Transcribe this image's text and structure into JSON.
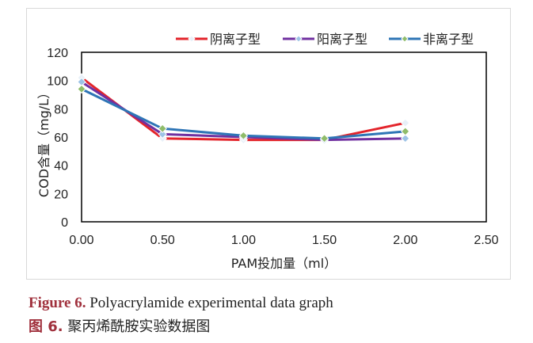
{
  "chart_data": {
    "type": "line",
    "title": "",
    "xlabel": "PAM投加量（ml）",
    "ylabel": "COD含量（mg/L）",
    "x": [
      0.0,
      0.5,
      1.0,
      1.5,
      2.0
    ],
    "xlim": [
      0,
      2.5
    ],
    "ylim": [
      0,
      120
    ],
    "x_ticks": [
      "0.00",
      "0.50",
      "1.00",
      "1.50",
      "2.00",
      "2.50"
    ],
    "y_ticks": [
      "0",
      "20",
      "40",
      "60",
      "80",
      "100",
      "120"
    ],
    "grid": false,
    "legend_position": "top",
    "series": [
      {
        "name": "阴离子型",
        "color": "#e3242b",
        "marker_color": "#e8f0f8",
        "values": [
          102,
          59,
          58,
          58,
          70
        ]
      },
      {
        "name": "阳离子型",
        "color": "#7030a0",
        "marker_color": "#9dc3e6",
        "values": [
          99,
          62,
          60,
          58,
          59
        ]
      },
      {
        "name": "非离子型",
        "color": "#2e75b6",
        "marker_color": "#8fbc6a",
        "values": [
          94,
          66,
          61,
          59,
          64
        ]
      }
    ]
  },
  "caption": {
    "en_label": "Figure 6.",
    "en_text": "Polyacrylamide experimental data graph",
    "zh_label": "图 6.",
    "zh_text": "聚丙烯酰胺实验数据图"
  }
}
